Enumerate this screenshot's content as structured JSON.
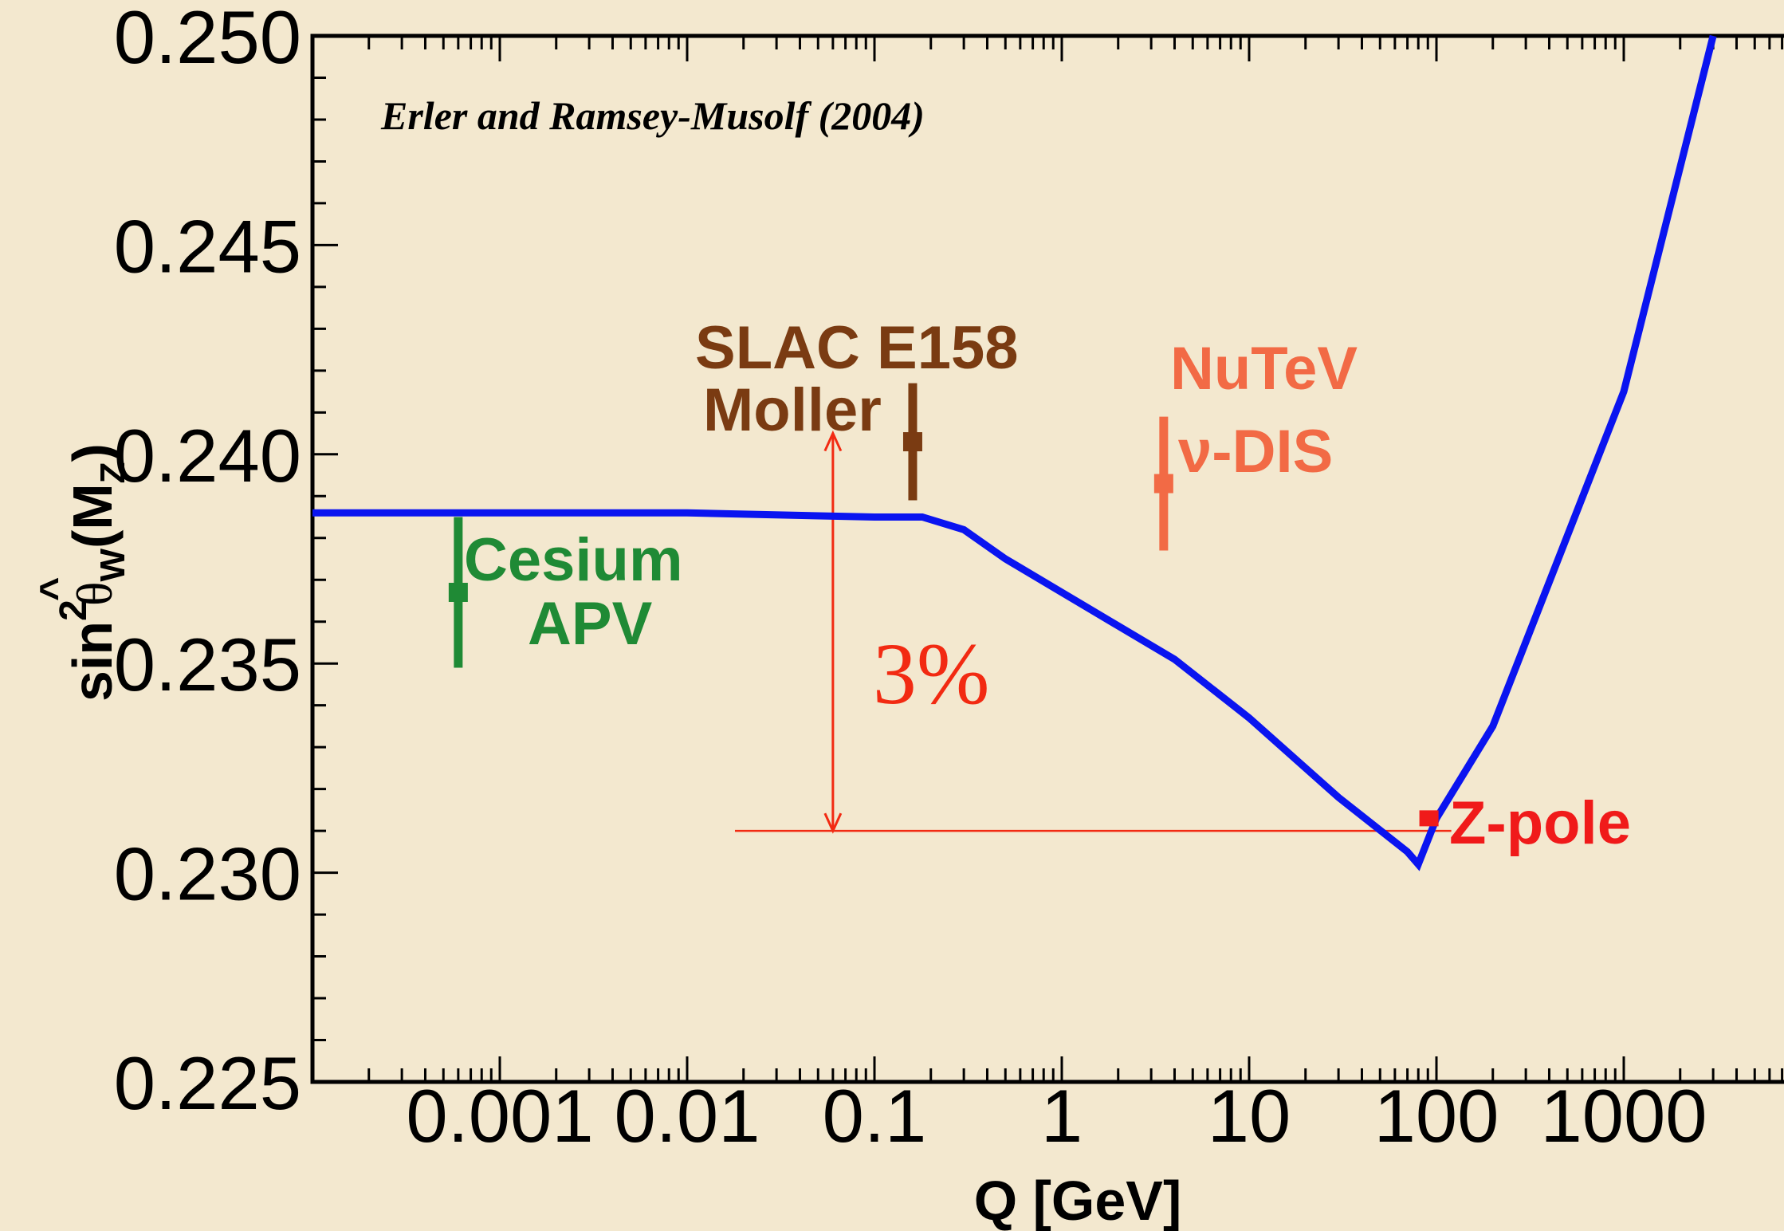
{
  "chart_data": {
    "type": "line",
    "title": "",
    "credit": "Erler and Ramsey-Musolf (2004)",
    "xlabel": "Q [GeV]",
    "ylabel": {
      "main": "sin",
      "sup": "2",
      "hat": "^",
      "theta": "θ",
      "sub_w": "W",
      "arg_open": "(M",
      "arg_sub": "Z",
      "arg_close": ")"
    },
    "x_scale": "log",
    "xlim": [
      0.0001,
      10000
    ],
    "ylim": [
      0.225,
      0.25
    ],
    "x_ticks": [
      {
        "value": 0.001,
        "label": "0.001"
      },
      {
        "value": 0.01,
        "label": "0.01"
      },
      {
        "value": 0.1,
        "label": "0.1"
      },
      {
        "value": 1,
        "label": "1"
      },
      {
        "value": 10,
        "label": "10"
      },
      {
        "value": 100,
        "label": "100"
      },
      {
        "value": 1000,
        "label": "1000"
      }
    ],
    "y_ticks": [
      {
        "value": 0.225,
        "label": "0.225"
      },
      {
        "value": 0.23,
        "label": "0.230"
      },
      {
        "value": 0.235,
        "label": "0.235"
      },
      {
        "value": 0.24,
        "label": "0.240"
      },
      {
        "value": 0.245,
        "label": "0.245"
      },
      {
        "value": 0.25,
        "label": "0.250"
      }
    ],
    "grid": false,
    "series": [
      {
        "color": "#0a14f0",
        "x": [
          0.0001,
          0.001,
          0.01,
          0.1,
          0.18,
          0.3,
          0.5,
          1.0,
          2.0,
          4.0,
          10,
          30,
          70,
          80,
          85,
          100,
          200,
          1000,
          3000
        ],
        "y": [
          0.2386,
          0.2386,
          0.2386,
          0.2385,
          0.2385,
          0.2382,
          0.2375,
          0.2367,
          0.2359,
          0.2351,
          0.2337,
          0.2318,
          0.2305,
          0.2302,
          0.2305,
          0.2313,
          0.2335,
          0.2415,
          0.25
        ]
      }
    ],
    "measurements": [
      {
        "name": "Cesium APV",
        "label_lines": [
          "Cesium",
          "APV"
        ],
        "color": "#1f8a35",
        "x": 0.0006,
        "y": 0.2367,
        "yerr": 0.0018,
        "label_pos": "right"
      },
      {
        "name": "SLAC E158 Moller",
        "label_lines": [
          "SLAC E158",
          "Moller"
        ],
        "color": "#7a3b12",
        "x": 0.16,
        "y": 0.2403,
        "yerr": 0.0014,
        "label_pos": "above-left"
      },
      {
        "name": "NuTeV ν-DIS",
        "label_lines": [
          "NuTeV",
          "ν-DIS"
        ],
        "color": "#f26a45",
        "x": 3.5,
        "y": 0.2393,
        "yerr": 0.0016,
        "label_pos": "right"
      },
      {
        "name": "Z-pole",
        "label_lines": [
          "Z-pole"
        ],
        "color": "#f01a1a",
        "x": 91.2,
        "y": 0.2313,
        "yerr": 0.0002,
        "label_pos": "right"
      }
    ],
    "annotations": [
      {
        "text": "3%",
        "color": "#f22a12",
        "arrow": {
          "x": 0.06,
          "y_from": 0.231,
          "y_to": 0.2405
        },
        "hline": {
          "y": 0.231,
          "x_from": 0.018,
          "x_to": 120
        }
      }
    ]
  }
}
